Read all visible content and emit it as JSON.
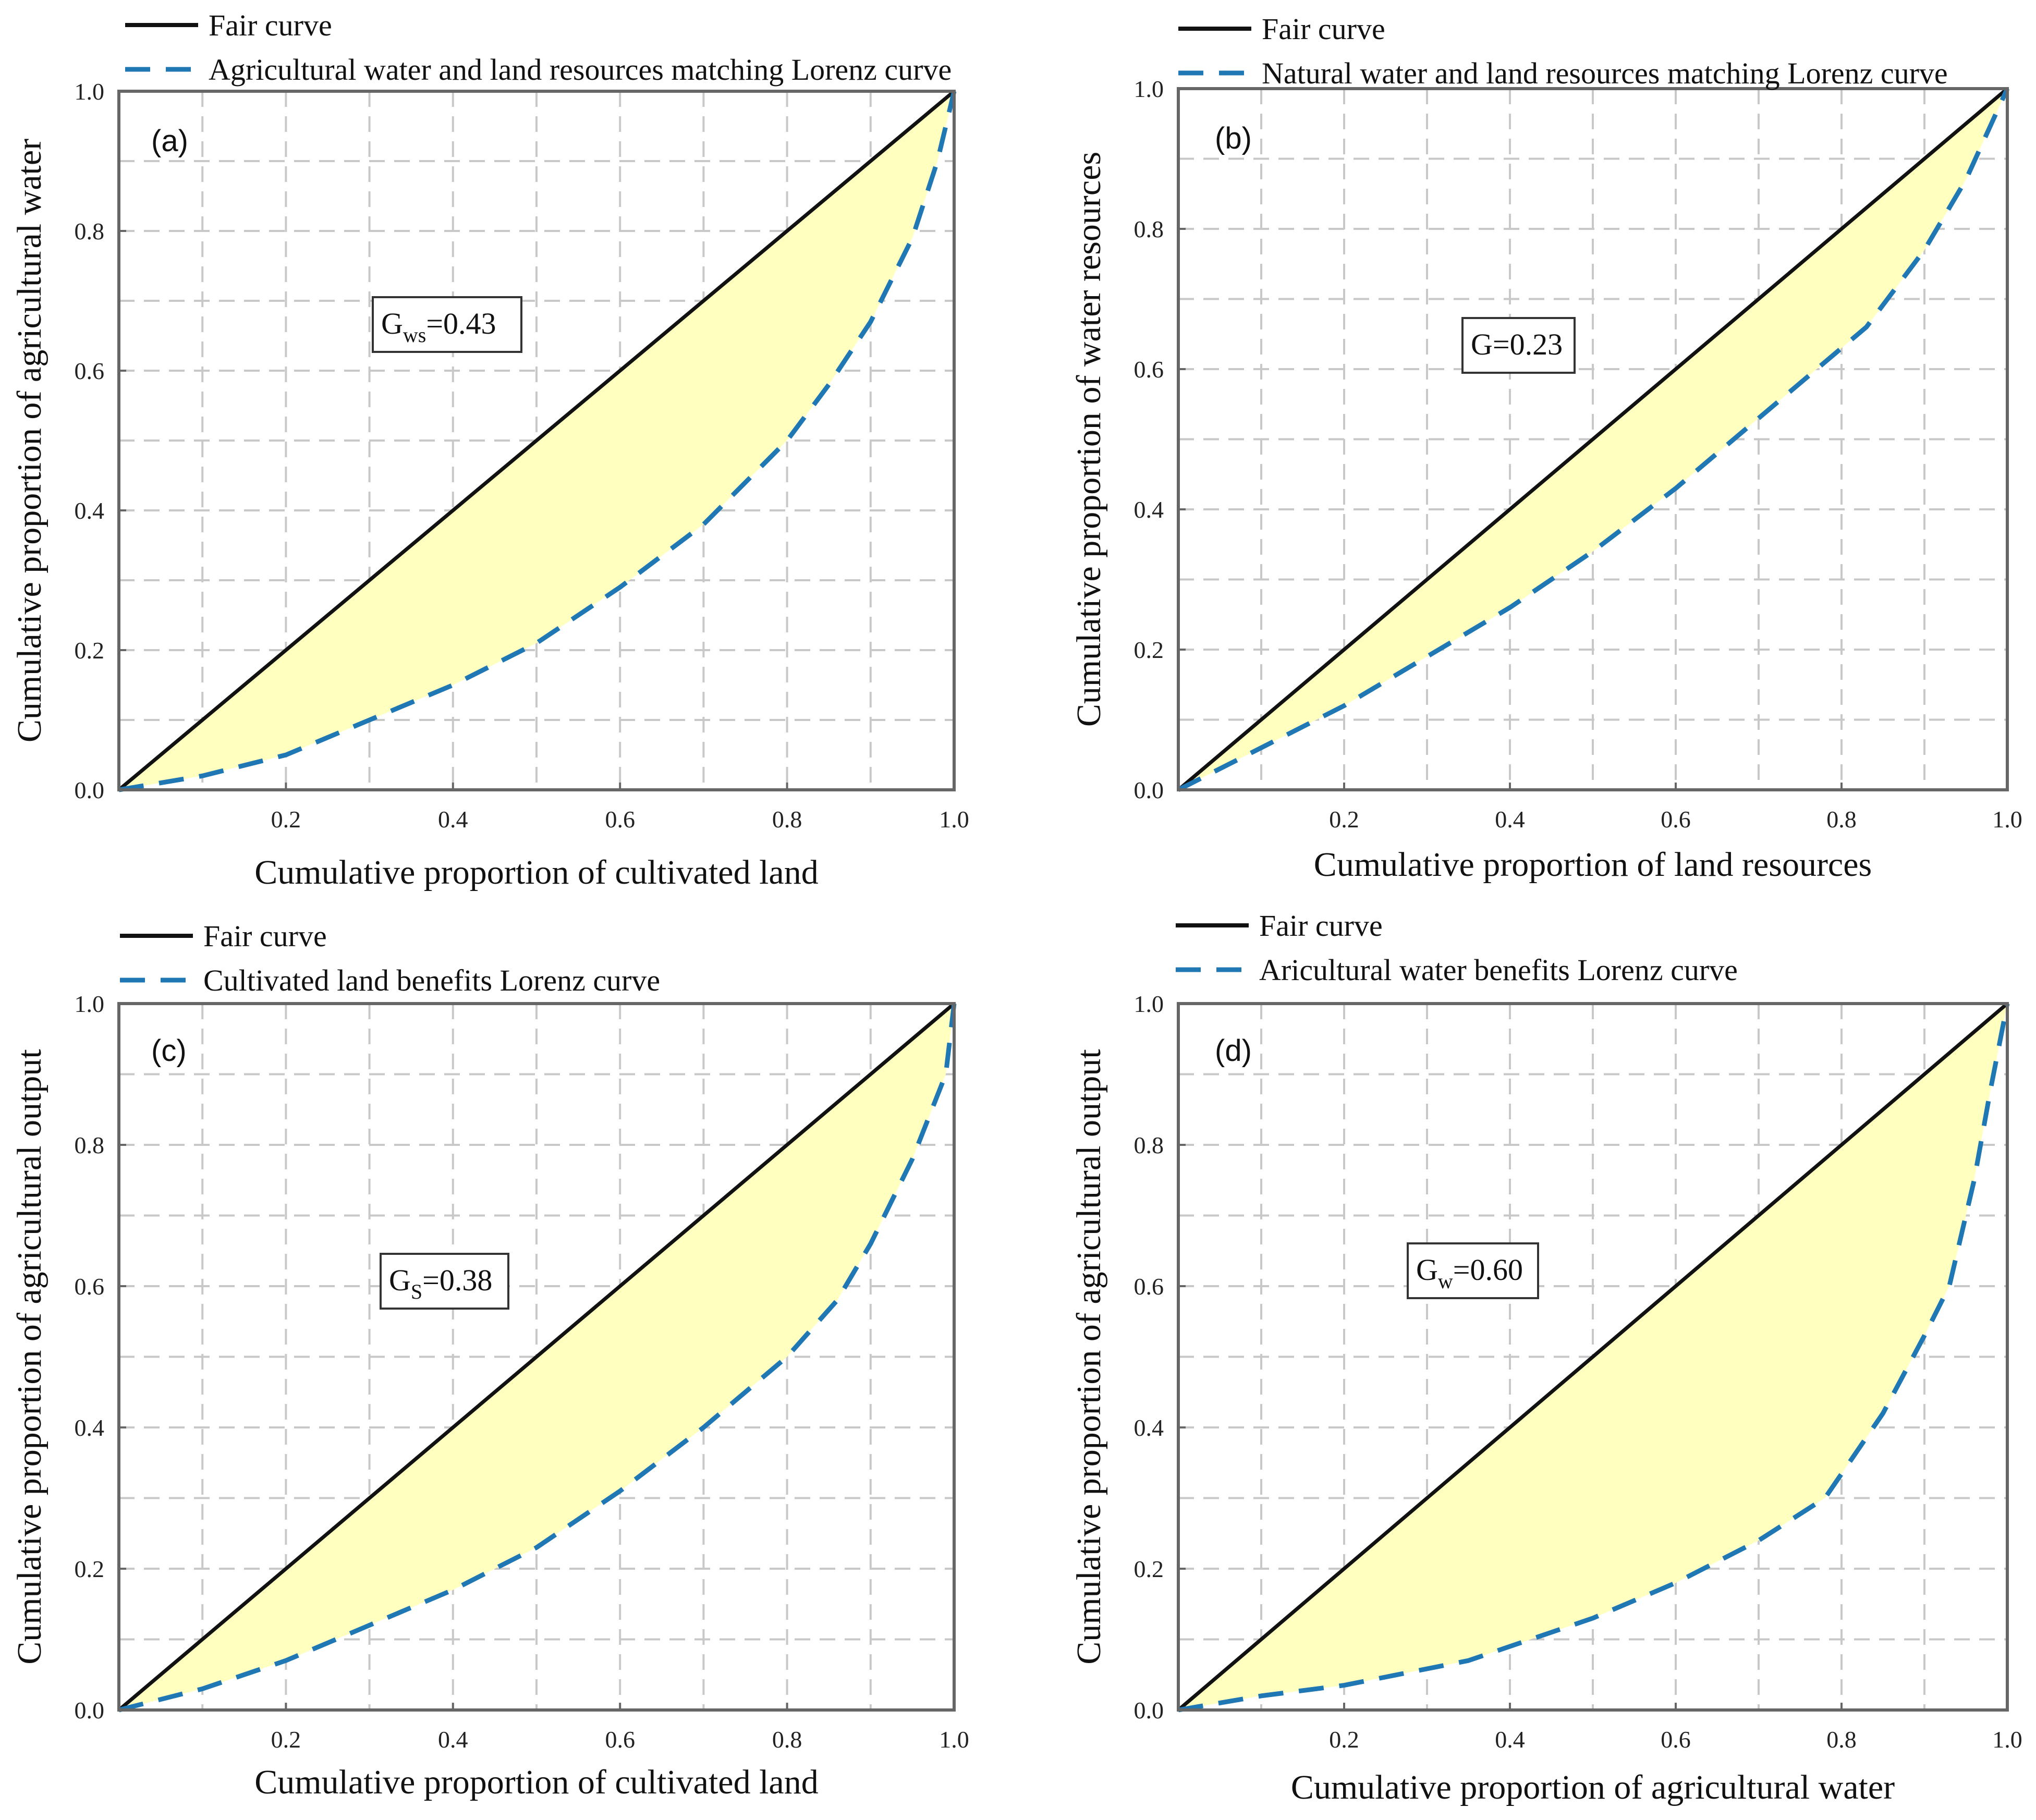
{
  "colors": {
    "fair": "#111111",
    "lorenz": "#1f77b4",
    "fill": "#ffffc0",
    "grid": "#c8c8c8",
    "frame": "#666666"
  },
  "chart_data": [
    {
      "panel": "(a)",
      "type": "line",
      "xlabel": "Cumulative proportion of cultivated land",
      "ylabel": "Cumulative proportion of agricultural water",
      "xlim": [
        0,
        1
      ],
      "ylim": [
        0,
        1
      ],
      "x_ticks": [
        "0.2",
        "0.4",
        "0.6",
        "0.8",
        "1.0"
      ],
      "y_ticks": [
        "0.0",
        "0.2",
        "0.4",
        "0.6",
        "0.8",
        "1.0"
      ],
      "grid": true,
      "legend": [
        "Fair curve",
        "Agricultural water and land resources matching Lorenz curve"
      ],
      "gini": {
        "base": "G",
        "sub": "ws",
        "text": "=0.43"
      },
      "series": [
        {
          "name": "Fair curve",
          "style": "solid",
          "x": [
            0,
            1
          ],
          "y": [
            0,
            1
          ]
        },
        {
          "name": "Agricultural water and land resources matching Lorenz curve",
          "style": "dashed",
          "x": [
            0,
            0.1,
            0.2,
            0.3,
            0.4,
            0.5,
            0.6,
            0.7,
            0.8,
            0.85,
            0.9,
            0.95,
            0.98,
            1.0
          ],
          "y": [
            0,
            0.02,
            0.05,
            0.1,
            0.15,
            0.21,
            0.29,
            0.38,
            0.5,
            0.58,
            0.67,
            0.79,
            0.9,
            1.0
          ]
        }
      ]
    },
    {
      "panel": "(b)",
      "type": "line",
      "xlabel": "Cumulative proportion of land resources",
      "ylabel": "Cumulative proportion of  water resources",
      "xlim": [
        0,
        1
      ],
      "ylim": [
        0,
        1
      ],
      "x_ticks": [
        "0.2",
        "0.4",
        "0.6",
        "0.8",
        "1.0"
      ],
      "y_ticks": [
        "0.0",
        "0.2",
        "0.4",
        "0.6",
        "0.8",
        "1.0"
      ],
      "grid": true,
      "legend": [
        "Fair curve",
        "Natural water and land resources matching Lorenz curve"
      ],
      "gini": {
        "base": "G",
        "sub": "",
        "text": "=0.23"
      },
      "series": [
        {
          "name": "Fair curve",
          "style": "solid",
          "x": [
            0,
            1
          ],
          "y": [
            0,
            1
          ]
        },
        {
          "name": "Natural water and land resources matching Lorenz curve",
          "style": "dashed",
          "x": [
            0,
            0.1,
            0.2,
            0.3,
            0.4,
            0.5,
            0.6,
            0.7,
            0.8,
            0.83,
            0.9,
            0.95,
            1.0
          ],
          "y": [
            0,
            0.06,
            0.12,
            0.19,
            0.26,
            0.34,
            0.43,
            0.53,
            0.63,
            0.66,
            0.77,
            0.87,
            1.0
          ]
        }
      ]
    },
    {
      "panel": "(c)",
      "type": "line",
      "xlabel": "Cumulative proportion of cultivated land",
      "ylabel": "Cumulative proportion of agricultural output",
      "xlim": [
        0,
        1
      ],
      "ylim": [
        0,
        1
      ],
      "x_ticks": [
        "0.2",
        "0.4",
        "0.6",
        "0.8",
        "1.0"
      ],
      "y_ticks": [
        "0.0",
        "0.2",
        "0.4",
        "0.6",
        "0.8",
        "1.0"
      ],
      "grid": true,
      "legend": [
        "Fair curve",
        "Cultivated land benefits Lorenz curve"
      ],
      "gini": {
        "base": "G",
        "sub": "S",
        "text": "=0.38"
      },
      "series": [
        {
          "name": "Fair curve",
          "style": "solid",
          "x": [
            0,
            1
          ],
          "y": [
            0,
            1
          ]
        },
        {
          "name": "Cultivated land benefits Lorenz curve",
          "style": "dashed",
          "x": [
            0,
            0.1,
            0.2,
            0.3,
            0.4,
            0.5,
            0.6,
            0.7,
            0.8,
            0.86,
            0.9,
            0.95,
            0.99,
            1.0
          ],
          "y": [
            0,
            0.03,
            0.07,
            0.12,
            0.17,
            0.23,
            0.31,
            0.4,
            0.5,
            0.58,
            0.66,
            0.78,
            0.9,
            1.0
          ]
        }
      ]
    },
    {
      "panel": "(d)",
      "type": "line",
      "xlabel": "Cumulative proportion of agricultural water",
      "ylabel": "Cumulative proportion of agricultural output",
      "xlim": [
        0,
        1
      ],
      "ylim": [
        0,
        1
      ],
      "x_ticks": [
        "0.2",
        "0.4",
        "0.6",
        "0.8",
        "1.0"
      ],
      "y_ticks": [
        "0.0",
        "0.2",
        "0.4",
        "0.6",
        "0.8",
        "1.0"
      ],
      "grid": true,
      "legend": [
        "Fair curve",
        "Aricultural water benefits Lorenz curve"
      ],
      "gini": {
        "base": "G",
        "sub": "w",
        "text": "=0.60"
      },
      "series": [
        {
          "name": "Fair curve",
          "style": "solid",
          "x": [
            0,
            1
          ],
          "y": [
            0,
            1
          ]
        },
        {
          "name": "Aricultural water benefits Lorenz curve",
          "style": "dashed",
          "x": [
            0,
            0.1,
            0.2,
            0.35,
            0.5,
            0.6,
            0.7,
            0.78,
            0.85,
            0.9,
            0.93,
            0.96,
            0.98,
            1.0
          ],
          "y": [
            0,
            0.02,
            0.035,
            0.07,
            0.13,
            0.18,
            0.24,
            0.3,
            0.42,
            0.53,
            0.6,
            0.75,
            0.88,
            1.0
          ]
        }
      ]
    }
  ]
}
